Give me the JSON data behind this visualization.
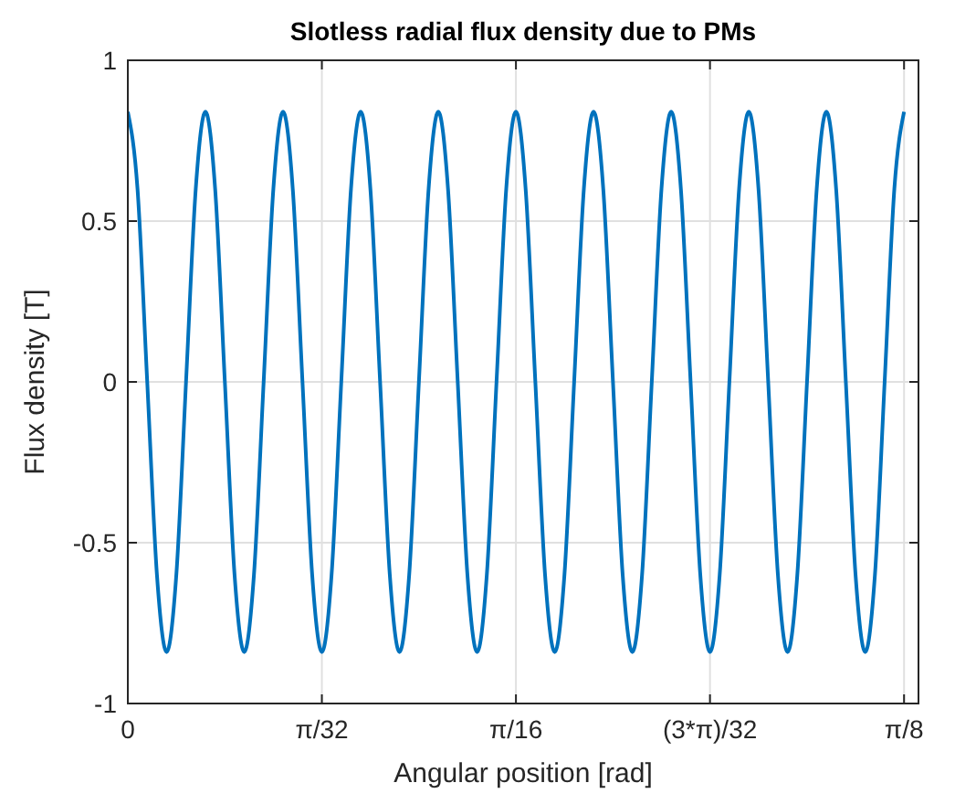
{
  "chart_data": {
    "type": "line",
    "title": "Slotless radial flux density due to PMs",
    "xlabel": "Angular position [rad]",
    "ylabel": "Flux density [T]",
    "x": [
      0,
      0.00491,
      0.00982,
      0.01473,
      0.01963,
      0.02454,
      0.02945,
      0.03436,
      0.03927,
      0.04418,
      0.04909,
      0.054,
      0.0589,
      0.06381,
      0.06872,
      0.07363,
      0.07854,
      0.08345,
      0.08836,
      0.09327,
      0.09817,
      0.10308,
      0.10799,
      0.1129,
      0.11781,
      0.12272,
      0.12763,
      0.13254,
      0.13744,
      0.14235,
      0.14726,
      0.15217,
      0.15708,
      0.16199,
      0.1669,
      0.17181,
      0.17671,
      0.18162,
      0.18653,
      0.19144,
      0.19635,
      0.20126,
      0.20617,
      0.21108,
      0.21598,
      0.22089,
      0.2258,
      0.23071,
      0.23562,
      0.24053,
      0.24544,
      0.25035,
      0.25525,
      0.26016,
      0.26507,
      0.26998,
      0.27489,
      0.2798,
      0.28471,
      0.28962,
      0.29452,
      0.29943,
      0.30434,
      0.30925,
      0.31416,
      0.31907,
      0.32398,
      0.32889,
      0.33379,
      0.3387,
      0.34361,
      0.34852,
      0.35343,
      0.35834,
      0.36325,
      0.36816,
      0.37306,
      0.37797,
      0.38288,
      0.38779,
      0.3927
    ],
    "series": [
      {
        "color": "#0072bd",
        "values": [
          0.84,
          0.6,
          0,
          -0.6,
          -0.84,
          -0.6,
          0,
          0.6,
          0.84,
          0.6,
          0,
          -0.6,
          -0.84,
          -0.6,
          0,
          0.6,
          0.84,
          0.6,
          0,
          -0.6,
          -0.84,
          -0.6,
          0,
          0.6,
          0.84,
          0.6,
          0,
          -0.6,
          -0.84,
          -0.6,
          0,
          0.6,
          0.84,
          0.6,
          0,
          -0.6,
          -0.84,
          -0.6,
          0,
          0.6,
          0.84,
          0.6,
          0,
          -0.6,
          -0.84,
          -0.6,
          0,
          0.6,
          0.84,
          0.6,
          0,
          -0.6,
          -0.84,
          -0.6,
          0,
          0.6,
          0.84,
          0.6,
          0,
          -0.6,
          -0.84,
          -0.6,
          0,
          0.6,
          0.84,
          0.6,
          0,
          -0.6,
          -0.84,
          -0.6,
          0,
          0.6,
          0.84,
          0.6,
          0,
          -0.6,
          -0.84,
          -0.6,
          0,
          0.6,
          0.84
        ]
      }
    ],
    "xlim": [
      0,
      0.4
    ],
    "xticks": [
      0,
      {
        "value": 0.09817,
        "label": "π/32"
      },
      {
        "value": 0.19635,
        "label": "π/16"
      },
      {
        "value": 0.29452,
        "label": "(3*π)/32"
      },
      {
        "value": 0.3927,
        "label": "π/8"
      }
    ],
    "ylim": [
      -1,
      1
    ],
    "yticks": [
      -1,
      -0.5,
      0,
      0.5,
      1
    ],
    "grid": true,
    "line_style": "solid",
    "marker": "none"
  }
}
